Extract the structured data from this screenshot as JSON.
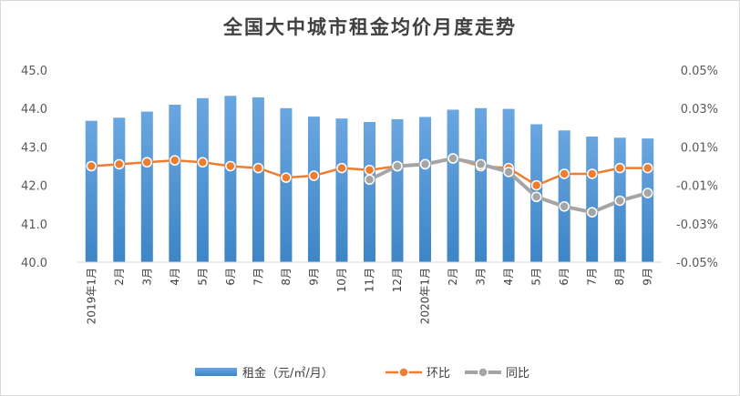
{
  "chart_data": {
    "type": "bar+line",
    "title": "全国大中城市租金均价月度走势",
    "categories": [
      "2019年1月",
      "2月",
      "3月",
      "4月",
      "5月",
      "6月",
      "7月",
      "8月",
      "9月",
      "10月",
      "11月",
      "12月",
      "2020年1月",
      "2月",
      "3月",
      "4月",
      "5月",
      "6月",
      "7月",
      "8月",
      "9月"
    ],
    "left_axis": {
      "ticks": [
        "40.0",
        "41.0",
        "42.0",
        "43.0",
        "44.0",
        "45.0"
      ],
      "ylim": [
        40,
        45
      ]
    },
    "right_axis": {
      "ticks": [
        "-0.05%",
        "-0.03%",
        "-0.01%",
        "0.01%",
        "0.03%",
        "0.05%"
      ],
      "ylim": [
        -0.05,
        0.05
      ]
    },
    "series": [
      {
        "name": "租金（元/㎡/月）",
        "kind": "bar",
        "axis": "left",
        "color": "#5b9bd5",
        "values": [
          43.68,
          43.76,
          43.92,
          44.1,
          44.27,
          44.33,
          44.29,
          44.01,
          43.79,
          43.74,
          43.65,
          43.72,
          43.78,
          43.97,
          44.01,
          43.99,
          43.59,
          43.43,
          43.27,
          43.24,
          43.22
        ]
      },
      {
        "name": "环比",
        "kind": "line",
        "axis": "right",
        "color": "#ed7d31",
        "values": [
          0.0,
          0.001,
          0.002,
          0.003,
          0.002,
          0.0,
          -0.001,
          -0.006,
          -0.005,
          -0.001,
          -0.002,
          0.0,
          0.001,
          0.004,
          0.0,
          -0.001,
          -0.01,
          -0.004,
          -0.004,
          -0.001,
          -0.001
        ]
      },
      {
        "name": "同比",
        "kind": "line",
        "axis": "right",
        "color": "#a5a5a5",
        "values": [
          null,
          null,
          null,
          null,
          null,
          null,
          null,
          null,
          null,
          null,
          -0.007,
          0.0,
          0.001,
          0.004,
          0.001,
          -0.003,
          -0.016,
          -0.021,
          -0.024,
          -0.018,
          -0.014
        ]
      }
    ],
    "legend_position": "bottom",
    "grid": false
  }
}
